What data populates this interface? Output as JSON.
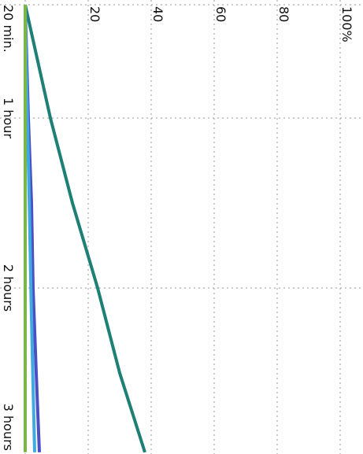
{
  "chart_data": {
    "type": "line",
    "x": [
      20,
      40,
      60,
      90,
      120,
      150,
      178
    ],
    "xlim": [
      20,
      180
    ],
    "xticks": [
      {
        "value": 20,
        "label": "20 min."
      },
      {
        "value": 60,
        "label": "1 hour"
      },
      {
        "value": 120,
        "label": "2 hours"
      },
      {
        "value": 180,
        "label": "3 hours"
      }
    ],
    "ylim": [
      0,
      100
    ],
    "yticks": [
      20,
      40,
      60,
      80,
      {
        "value": 100,
        "label": "100%"
      }
    ],
    "grid": true,
    "series": [
      {
        "color": "#1e7f74",
        "values": [
          0,
          4,
          8,
          15,
          23,
          30,
          38
        ]
      },
      {
        "color": "#4a4fc4",
        "values": [
          0,
          0.5,
          1,
          2,
          2.5,
          3.5,
          4.5
        ]
      },
      {
        "color": "#3fa9e0",
        "values": [
          0,
          0.3,
          0.7,
          1.3,
          1.8,
          2.4,
          3
        ]
      },
      {
        "color": "#7ab648",
        "values": [
          0,
          0,
          0,
          0,
          0,
          0,
          0
        ]
      }
    ]
  }
}
